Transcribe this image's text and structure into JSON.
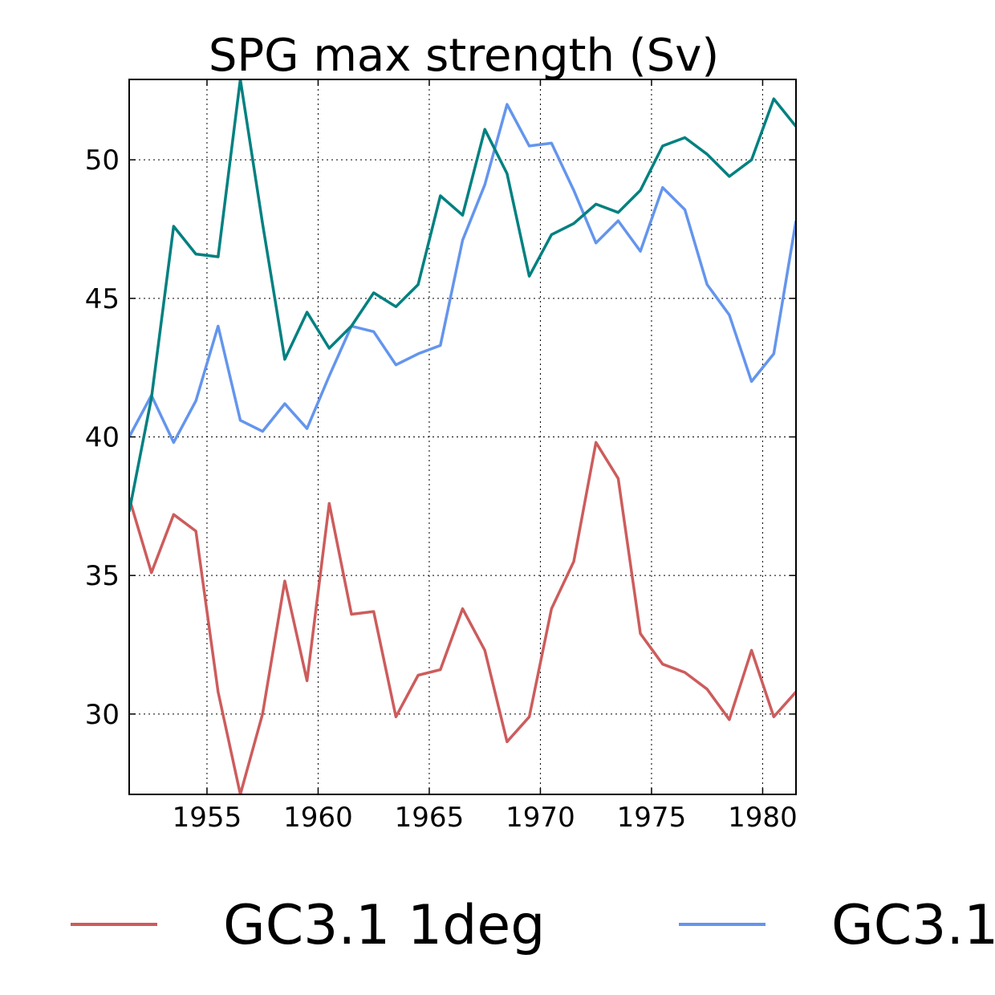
{
  "chart_data": {
    "type": "line",
    "title": "SPG max strength (Sv)",
    "xlabel": "",
    "ylabel": "",
    "xlim": [
      1951.5,
      1981.5
    ],
    "ylim": [
      27.1,
      52.9
    ],
    "grid": true,
    "legend_placement": "bottom",
    "x": [
      1951.5,
      1952.5,
      1953.5,
      1954.5,
      1955.5,
      1956.5,
      1957.5,
      1958.5,
      1959.5,
      1960.5,
      1961.5,
      1962.5,
      1963.5,
      1964.5,
      1965.5,
      1966.5,
      1967.5,
      1968.5,
      1969.5,
      1970.5,
      1971.5,
      1972.5,
      1973.5,
      1974.5,
      1975.5,
      1976.5,
      1977.5,
      1978.5,
      1979.5,
      1980.5,
      1981.5
    ],
    "x_ticks": [
      1955,
      1960,
      1965,
      1970,
      1975,
      1980
    ],
    "y_ticks": [
      30,
      35,
      40,
      45,
      50
    ],
    "series": [
      {
        "name": "GC3.1 1deg",
        "color": "#cd5c5c",
        "values": [
          37.8,
          35.1,
          37.2,
          36.6,
          30.8,
          27.1,
          30.0,
          34.8,
          31.2,
          37.6,
          33.6,
          33.7,
          29.9,
          31.4,
          31.6,
          33.8,
          32.3,
          29.0,
          29.9,
          33.8,
          35.5,
          39.8,
          38.5,
          32.9,
          31.8,
          31.5,
          30.9,
          29.8,
          32.3,
          29.9,
          30.8
        ]
      },
      {
        "name": "GC3.1",
        "color": "#6495ed",
        "values": [
          40.0,
          41.5,
          39.8,
          41.3,
          44.0,
          40.6,
          40.2,
          41.2,
          40.3,
          42.2,
          44.0,
          43.8,
          42.6,
          43.0,
          43.3,
          47.1,
          49.1,
          52.0,
          50.5,
          50.6,
          48.9,
          47.0,
          47.8,
          46.7,
          49.0,
          48.2,
          45.5,
          44.4,
          42.0,
          43.0,
          47.8
        ]
      },
      {
        "name": "",
        "color": "#008080",
        "values": [
          37.3,
          41.4,
          47.6,
          46.6,
          46.5,
          52.9,
          47.7,
          42.8,
          44.5,
          43.2,
          44.0,
          45.2,
          44.7,
          45.5,
          48.7,
          48.0,
          51.1,
          49.5,
          45.8,
          47.3,
          47.7,
          48.4,
          48.1,
          48.9,
          50.5,
          50.8,
          50.2,
          49.4,
          50.0,
          52.2,
          51.2
        ]
      }
    ]
  }
}
